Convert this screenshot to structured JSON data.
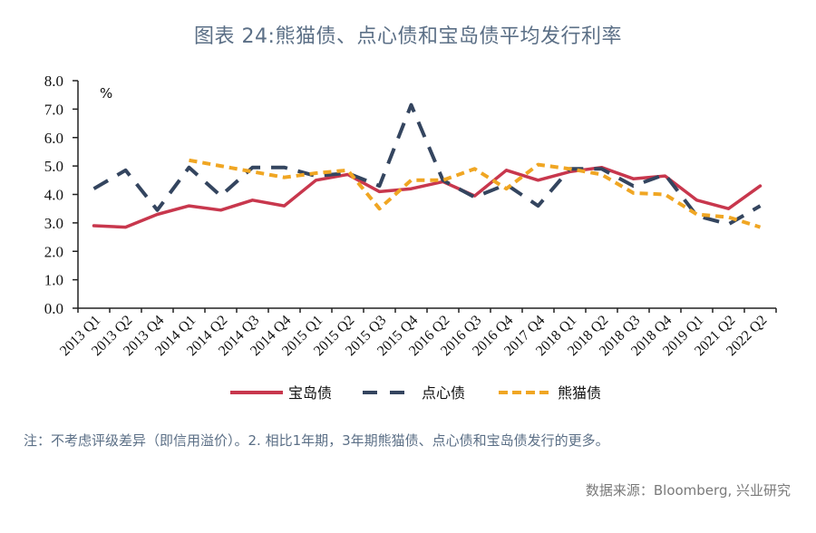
{
  "title": "图表 24:熊猫债、点心债和宝岛债平均发行利率",
  "note": "注：不考虑评级差异（即信用溢价）。2. 相比1年期，3年期熊猫债、点心债和宝岛债发行的更多。",
  "source": "数据来源：Bloomberg, 兴业研究",
  "colors": {
    "baodao": "#c8374d",
    "dianxin": "#34455f",
    "xiongmao": "#f0a623",
    "title": "#5b6f86"
  },
  "chart_data": {
    "type": "line",
    "title": "图表 24:熊猫债、点心债和宝岛债平均发行利率",
    "xlabel": "",
    "ylabel": "%",
    "ylim": [
      0,
      8
    ],
    "yticks": [
      "0.0",
      "1.0",
      "2.0",
      "3.0",
      "4.0",
      "5.0",
      "6.0",
      "7.0",
      "8.0"
    ],
    "grid": false,
    "legend_position": "bottom",
    "categories": [
      "2013 Q1",
      "2013 Q2",
      "2013 Q4",
      "2014 Q1",
      "2014 Q2",
      "2014 Q3",
      "2014 Q4",
      "2015 Q1",
      "2015 Q2",
      "2015 Q3",
      "2015 Q4",
      "2016 Q2",
      "2016 Q3",
      "2016 Q4",
      "2017 Q4",
      "2018 Q1",
      "2018 Q2",
      "2018 Q3",
      "2018 Q4",
      "2019 Q1",
      "2021 Q2",
      "2022 Q2"
    ],
    "series": [
      {
        "name": "宝岛债",
        "style": "solid",
        "color": "#c8374d",
        "values": [
          2.9,
          2.85,
          3.3,
          3.6,
          3.45,
          3.8,
          3.6,
          4.5,
          4.7,
          4.1,
          4.2,
          4.45,
          3.95,
          4.85,
          4.5,
          4.8,
          4.95,
          4.55,
          4.65,
          3.8,
          3.5,
          4.3
        ]
      },
      {
        "name": "点心债",
        "style": "long-dash",
        "color": "#34455f",
        "values": [
          4.2,
          4.85,
          3.45,
          4.95,
          3.95,
          4.95,
          4.95,
          4.65,
          4.75,
          4.3,
          7.15,
          4.5,
          3.9,
          4.35,
          3.6,
          4.9,
          4.9,
          4.3,
          4.7,
          3.25,
          2.95,
          3.6
        ]
      },
      {
        "name": "熊猫债",
        "style": "short-dash",
        "color": "#f0a623",
        "values": [
          null,
          null,
          null,
          5.2,
          5.0,
          4.8,
          4.6,
          4.75,
          4.85,
          3.5,
          4.5,
          4.5,
          4.9,
          4.2,
          5.05,
          4.9,
          4.7,
          4.05,
          4.0,
          3.3,
          3.2,
          2.85
        ]
      }
    ]
  }
}
